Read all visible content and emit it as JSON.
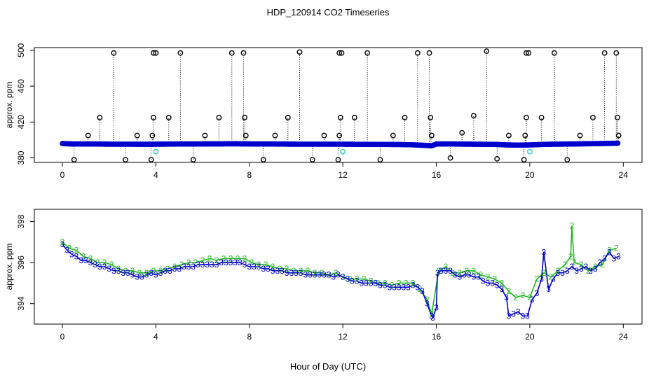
{
  "title": "HDP_120914  CO2 Timeseries",
  "xlabel_shared": "Hour of Day (UTC)",
  "colors": {
    "black": "#000000",
    "blue": "#0000cc",
    "green": "#22bb22",
    "cyan": "#22cccc"
  },
  "chart_data": [
    {
      "type": "scatter",
      "name": "top-panel",
      "ylabel": "approx. ppm",
      "xlim": [
        -1.2,
        24.8
      ],
      "ylim": [
        375,
        503
      ],
      "xticks": [
        0,
        4,
        8,
        12,
        16,
        20,
        24
      ],
      "xtick_labels": [
        "0",
        "4",
        "8",
        "12",
        "16",
        "20",
        "24"
      ],
      "yticks": [
        380,
        420,
        460,
        500
      ],
      "ytick_labels": [
        "380",
        "420",
        "460",
        "500"
      ],
      "baseline_series": {
        "name": "main record",
        "x": [
          0.0,
          0.5,
          1.0,
          1.5,
          2.0,
          2.5,
          3.0,
          3.5,
          4.0,
          4.5,
          5.0,
          5.5,
          6.0,
          6.5,
          7.0,
          7.5,
          8.0,
          8.5,
          9.0,
          9.5,
          10.0,
          10.5,
          11.0,
          11.5,
          12.0,
          12.5,
          13.0,
          13.5,
          14.0,
          14.5,
          15.0,
          15.5,
          15.8,
          16.0,
          16.5,
          17.0,
          17.5,
          18.0,
          18.5,
          19.0,
          19.5,
          20.0,
          20.5,
          21.0,
          21.5,
          22.0,
          22.5,
          23.0,
          23.5,
          23.8
        ],
        "y": [
          396,
          395.5,
          395.5,
          395.5,
          395.3,
          395.3,
          395.3,
          395.2,
          395.3,
          395.4,
          395.5,
          395.5,
          395.6,
          395.6,
          395.7,
          395.7,
          395.6,
          395.5,
          395.5,
          395.4,
          395.3,
          395.3,
          395.3,
          395.3,
          395.3,
          395.2,
          395.1,
          395.0,
          395.0,
          394.9,
          394.6,
          394.0,
          393.5,
          395.5,
          395.6,
          395.4,
          395.3,
          395.2,
          395.1,
          394.5,
          394.3,
          394.5,
          395.0,
          395.3,
          395.4,
          395.6,
          395.8,
          396.0,
          396.2,
          396.4
        ]
      },
      "spikes": {
        "x": [
          0.5,
          1.1,
          1.6,
          2.2,
          2.7,
          3.2,
          3.8,
          3.85,
          3.9,
          4.55,
          5.05,
          5.6,
          6.1,
          6.7,
          7.25,
          7.75,
          7.8,
          7.85,
          8.6,
          9.1,
          9.65,
          10.15,
          10.7,
          11.2,
          11.8,
          11.85,
          11.9,
          12.5,
          13.05,
          13.6,
          14.15,
          14.65,
          15.2,
          15.7,
          15.75,
          15.8,
          16.6,
          17.1,
          17.6,
          18.15,
          18.6,
          19.1,
          19.75,
          19.8,
          19.85,
          20.5,
          21.05,
          21.6,
          22.15,
          22.7,
          23.2,
          23.7,
          23.75,
          23.8
        ],
        "y": [
          378,
          405,
          425,
          497,
          378,
          405,
          378,
          405,
          425,
          425,
          497,
          378,
          405,
          425,
          497,
          497,
          425,
          405,
          378,
          405,
          425,
          498,
          378,
          405,
          378,
          405,
          425,
          425,
          497,
          378,
          405,
          425,
          497,
          497,
          425,
          405,
          380,
          408,
          427,
          499,
          379,
          405,
          378,
          405,
          425,
          425,
          497,
          378,
          405,
          425,
          497,
          497,
          425,
          405
        ]
      },
      "top_markers": {
        "x": [
          3.9,
          4.0,
          11.85,
          11.95,
          19.85,
          19.95
        ],
        "y": [
          497,
          497,
          497,
          497,
          497,
          497
        ]
      },
      "cyan_points": {
        "x": [
          4.0,
          12.0,
          20.0
        ],
        "y": [
          387,
          387,
          387
        ]
      }
    },
    {
      "type": "line",
      "name": "bottom-panel",
      "ylabel": "approx. ppm",
      "xlim": [
        -1.2,
        24.8
      ],
      "ylim": [
        393.0,
        398.6
      ],
      "xticks": [
        0,
        4,
        8,
        12,
        16,
        20,
        24
      ],
      "xtick_labels": [
        "0",
        "4",
        "8",
        "12",
        "16",
        "20",
        "24"
      ],
      "yticks": [
        394,
        396,
        398
      ],
      "ytick_labels": [
        "394",
        "396",
        "398"
      ],
      "series": [
        {
          "name": "3",
          "label": "3",
          "color": "blue",
          "x": [
            0.0,
            0.2,
            0.4,
            0.6,
            0.8,
            1.0,
            1.2,
            1.4,
            1.6,
            1.8,
            2.0,
            2.2,
            2.4,
            2.6,
            2.8,
            3.0,
            3.2,
            3.4,
            3.6,
            3.8,
            4.0,
            4.2,
            4.4,
            4.6,
            4.8,
            5.0,
            5.2,
            5.4,
            5.6,
            5.8,
            6.0,
            6.2,
            6.4,
            6.6,
            6.8,
            7.0,
            7.2,
            7.4,
            7.6,
            7.8,
            8.0,
            8.2,
            8.4,
            8.6,
            8.8,
            9.0,
            9.2,
            9.4,
            9.6,
            9.8,
            10.0,
            10.2,
            10.4,
            10.6,
            10.8,
            11.0,
            11.2,
            11.4,
            11.6,
            11.8,
            12.0,
            12.2,
            12.4,
            12.6,
            12.8,
            13.0,
            13.2,
            13.4,
            13.6,
            13.8,
            14.0,
            14.2,
            14.4,
            14.6,
            14.8,
            15.0,
            15.2,
            15.4,
            15.6,
            15.8,
            15.85,
            16.0,
            16.05,
            16.2,
            16.4,
            16.6,
            16.8,
            17.0,
            17.2,
            17.4,
            17.6,
            17.8,
            18.0,
            18.2,
            18.4,
            18.6,
            18.8,
            19.0,
            19.1,
            19.3,
            19.5,
            19.7,
            19.9,
            20.1,
            20.3,
            20.5,
            20.6,
            20.8,
            21.0,
            21.2,
            21.4,
            21.6,
            21.8,
            22.0,
            22.2,
            22.4,
            22.6,
            22.8,
            23.0,
            23.2,
            23.4,
            23.6,
            23.8
          ],
          "y": [
            396.9,
            396.6,
            396.4,
            396.3,
            396.1,
            396.1,
            396.0,
            395.9,
            395.8,
            395.8,
            395.7,
            395.6,
            395.6,
            395.5,
            395.5,
            395.4,
            395.3,
            395.3,
            395.4,
            395.5,
            395.4,
            395.5,
            395.6,
            395.6,
            395.7,
            395.7,
            395.8,
            395.8,
            395.8,
            395.9,
            395.9,
            395.9,
            395.9,
            395.9,
            396.0,
            396.0,
            396.0,
            396.0,
            396.0,
            395.9,
            395.8,
            395.8,
            395.8,
            395.7,
            395.7,
            395.6,
            395.6,
            395.6,
            395.5,
            395.5,
            395.5,
            395.5,
            395.4,
            395.4,
            395.4,
            395.4,
            395.4,
            395.4,
            395.3,
            395.4,
            395.3,
            395.2,
            395.1,
            395.1,
            395.0,
            395.0,
            395.0,
            395.0,
            394.9,
            394.9,
            394.8,
            394.8,
            394.8,
            394.8,
            394.8,
            394.9,
            394.8,
            394.6,
            394.0,
            393.4,
            393.3,
            393.8,
            395.5,
            395.6,
            395.6,
            395.6,
            395.4,
            395.3,
            395.4,
            395.4,
            395.3,
            395.3,
            395.1,
            395.0,
            395.0,
            394.9,
            394.7,
            394.3,
            393.4,
            393.5,
            393.6,
            393.4,
            393.4,
            394.2,
            394.5,
            395.2,
            396.5,
            394.7,
            395.2,
            395.5,
            395.5,
            395.6,
            395.8,
            395.6,
            395.7,
            395.8,
            395.6,
            395.7,
            396.0,
            396.2,
            396.5,
            396.2,
            396.3
          ]
        },
        {
          "name": "2",
          "label": "2",
          "color": "green",
          "x": [
            0.0,
            0.3,
            0.6,
            0.9,
            1.2,
            1.5,
            1.8,
            2.1,
            2.4,
            2.7,
            3.0,
            3.3,
            3.6,
            3.9,
            4.2,
            4.5,
            4.8,
            5.1,
            5.4,
            5.7,
            6.0,
            6.3,
            6.6,
            6.9,
            7.2,
            7.5,
            7.8,
            8.1,
            8.4,
            8.7,
            9.0,
            9.3,
            9.6,
            9.9,
            10.2,
            10.5,
            10.8,
            11.1,
            11.4,
            11.7,
            12.0,
            12.3,
            12.6,
            12.9,
            13.2,
            13.5,
            13.8,
            14.1,
            14.4,
            14.7,
            15.0,
            15.3,
            15.6,
            15.8,
            16.1,
            16.4,
            16.7,
            17.0,
            17.3,
            17.6,
            17.9,
            18.2,
            18.5,
            18.8,
            19.1,
            19.4,
            19.7,
            20.0,
            20.3,
            20.6,
            20.9,
            21.2,
            21.5,
            21.75,
            21.8,
            21.9,
            22.2,
            22.5,
            22.8,
            23.1,
            23.4,
            23.7
          ],
          "y": [
            397.0,
            396.7,
            396.6,
            396.3,
            396.2,
            396.0,
            396.0,
            395.9,
            395.7,
            395.6,
            395.6,
            395.5,
            395.5,
            395.6,
            395.6,
            395.7,
            395.8,
            395.9,
            396.0,
            396.0,
            396.1,
            396.2,
            396.1,
            396.2,
            396.2,
            396.2,
            396.2,
            396.0,
            395.9,
            395.9,
            395.8,
            395.7,
            395.7,
            395.6,
            395.6,
            395.6,
            395.5,
            395.5,
            395.4,
            395.5,
            395.3,
            395.2,
            395.2,
            395.2,
            395.1,
            395.0,
            395.0,
            394.9,
            395.0,
            395.0,
            395.0,
            394.7,
            394.2,
            393.5,
            395.6,
            395.8,
            395.5,
            395.5,
            395.6,
            395.6,
            395.4,
            395.3,
            395.2,
            395.0,
            394.6,
            394.3,
            394.4,
            394.3,
            395.2,
            395.5,
            395.3,
            395.6,
            395.9,
            396.3,
            397.8,
            396.0,
            395.9,
            395.6,
            395.8,
            395.9,
            396.6,
            396.7
          ]
        }
      ]
    }
  ]
}
